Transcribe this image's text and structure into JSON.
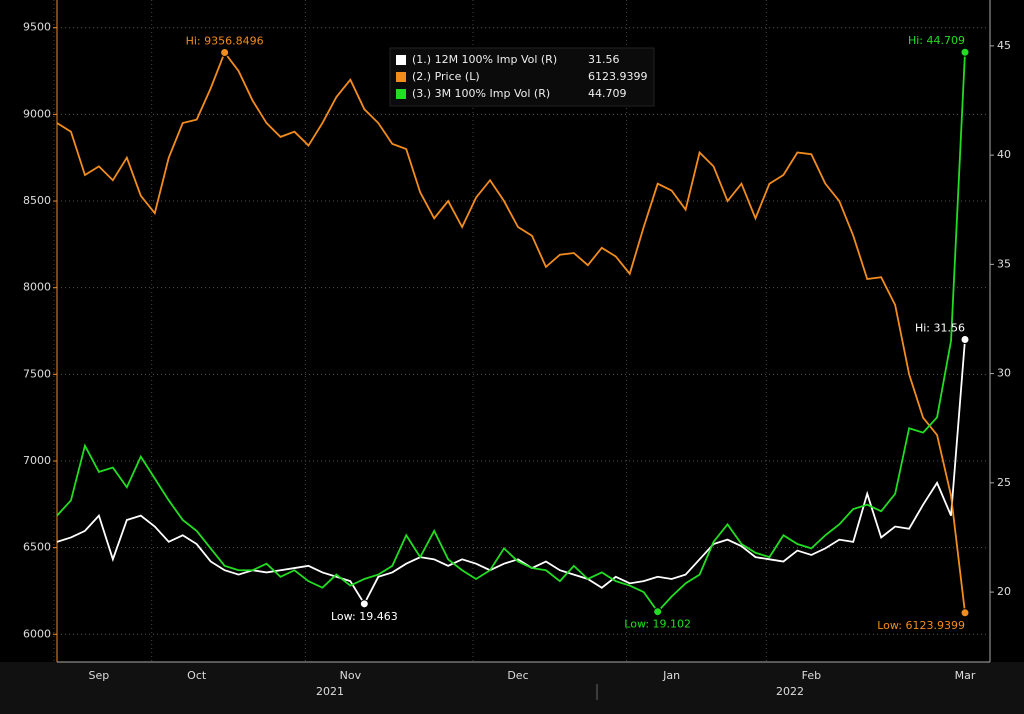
{
  "chart_data": {
    "type": "line",
    "categories": [
      null,
      null,
      null,
      "Sep",
      null,
      null,
      null,
      null,
      null,
      null,
      "Oct",
      null,
      null,
      null,
      null,
      null,
      null,
      null,
      null,
      null,
      null,
      "Nov",
      null,
      null,
      null,
      null,
      null,
      null,
      null,
      null,
      null,
      null,
      null,
      "Dec",
      null,
      null,
      null,
      null,
      null,
      null,
      null,
      null,
      null,
      null,
      "Jan",
      null,
      null,
      null,
      null,
      null,
      null,
      null,
      null,
      null,
      "Feb",
      null,
      null,
      null,
      null,
      null,
      null,
      null,
      null,
      null,
      null,
      "Mar"
    ],
    "years": [
      "2021",
      "2022"
    ],
    "series": [
      {
        "name": "(1.) 12M 100% Imp Vol (R)",
        "color": "#ffffff",
        "axis": "y2",
        "values": [
          22.3,
          22.5,
          22.8,
          23.5,
          21.5,
          23.3,
          23.5,
          23,
          22.3,
          22.6,
          22.2,
          21.4,
          21,
          20.8,
          21,
          20.9,
          21,
          21.1,
          21.2,
          20.9,
          20.7,
          20.5,
          19.463,
          20.7,
          20.9,
          21.3,
          21.6,
          21.5,
          21.2,
          21.5,
          21.3,
          21,
          21.3,
          21.5,
          21.1,
          21.4,
          21,
          20.8,
          20.6,
          20.2,
          20.7,
          20.4,
          20.5,
          20.7,
          20.6,
          20.8,
          21.5,
          22.2,
          22.4,
          22.1,
          21.6,
          21.5,
          21.4,
          21.9,
          21.7,
          22,
          22.4,
          22.3,
          24.5,
          22.5,
          23,
          22.9,
          24,
          25,
          23.5,
          31.56
        ]
      },
      {
        "name": "(2.) Price (L)",
        "color": "#f28c1e",
        "values": [
          8950,
          8900,
          8650,
          8700,
          8620,
          8750,
          8530,
          8430,
          8750,
          8950,
          8970,
          9150,
          9356.8496,
          9250,
          9080,
          8950,
          8870,
          8900,
          8820,
          8950,
          9100,
          9200,
          9030,
          8950,
          8830,
          8800,
          8550,
          8400,
          8500,
          8350,
          8520,
          8620,
          8500,
          8350,
          8300,
          8120,
          8190,
          8200,
          8130,
          8230,
          8180,
          8080,
          8350,
          8600,
          8560,
          8450,
          8780,
          8700,
          8500,
          8600,
          8400,
          8600,
          8650,
          8780,
          8770,
          8600,
          8500,
          8300,
          8050,
          8060,
          7900,
          7500,
          7250,
          7150,
          6800,
          6123.9399
        ]
      },
      {
        "name": "(3.) 3M 100% Imp Vol (R)",
        "color": "#22dd22",
        "axis": "y2",
        "values": [
          23.5,
          24.2,
          26.7,
          25.5,
          25.7,
          24.8,
          26.2,
          25.2,
          24.2,
          23.3,
          22.8,
          22,
          21.2,
          21,
          21,
          21.3,
          20.7,
          21,
          20.5,
          20.2,
          20.8,
          20.3,
          20.6,
          20.8,
          21.2,
          22.6,
          21.6,
          22.8,
          21.5,
          21,
          20.6,
          21,
          22,
          21.4,
          21.1,
          21,
          20.5,
          21.2,
          20.6,
          20.9,
          20.5,
          20.3,
          20,
          19.102,
          19.8,
          20.4,
          20.8,
          22.3,
          23.1,
          22.2,
          21.8,
          21.6,
          22.6,
          22.2,
          22,
          22.6,
          23.1,
          23.8,
          24,
          23.7,
          24.5,
          27.5,
          27.3,
          28,
          31.5,
          44.709
        ]
      }
    ],
    "annotations": [
      {
        "label": "Hi: 9356.8496",
        "series": 1,
        "index": 12,
        "pos": "above"
      },
      {
        "label": "Low: 6123.9399",
        "series": 1,
        "index": 65,
        "pos": "below"
      },
      {
        "label": "Hi: 31.56",
        "series": 0,
        "index": 65,
        "pos": "above"
      },
      {
        "label": "Low: 19.463",
        "series": 0,
        "index": 22,
        "pos": "below"
      },
      {
        "label": "Hi: 44.709",
        "series": 2,
        "index": 65,
        "pos": "above"
      },
      {
        "label": "Low: 19.102",
        "series": 2,
        "index": 43,
        "pos": "below"
      }
    ],
    "ylim": [
      5840,
      9660
    ],
    "yticks": [
      6000,
      6500,
      7000,
      7500,
      8000,
      8500,
      9000,
      9500
    ],
    "y2lim": [
      16.8,
      47.1
    ],
    "y2ticks": [
      20,
      25,
      30,
      35,
      40,
      45
    ],
    "grid": true
  }
}
